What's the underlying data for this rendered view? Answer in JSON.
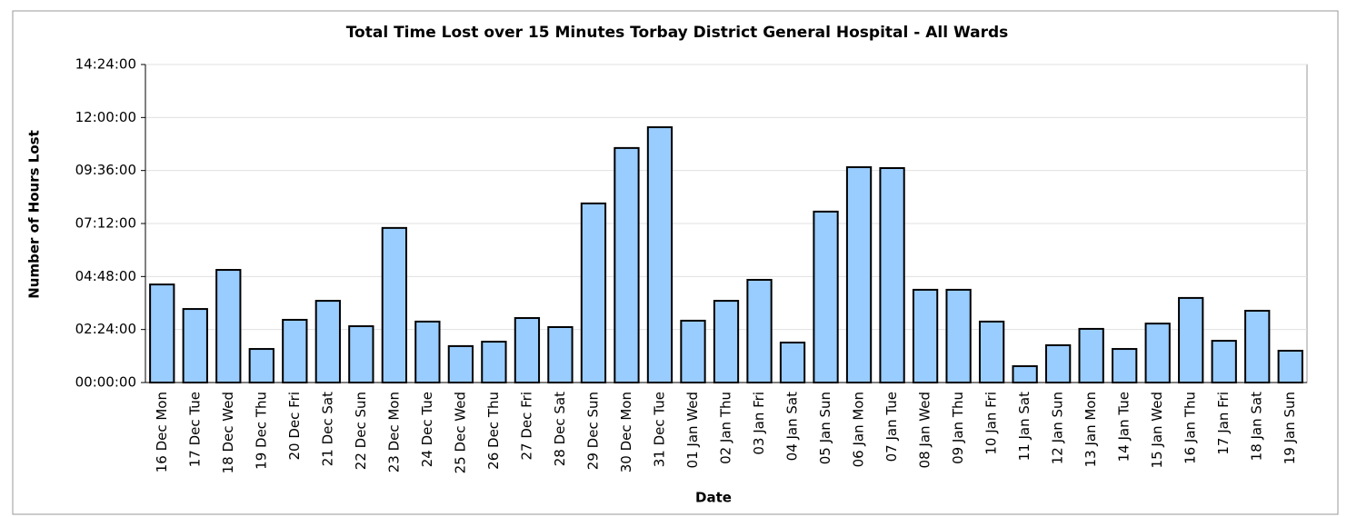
{
  "chart_data": {
    "type": "bar",
    "title": "Total Time Lost over 15 Minutes Torbay District General Hospital - All Wards",
    "x_label": "Date",
    "y_label": "Number of Hours Lost",
    "categories": [
      "16 Dec Mon",
      "17 Dec Tue",
      "18 Dec Wed",
      "19 Dec Thu",
      "20 Dec Fri",
      "21 Dec Sat",
      "22 Dec Sun",
      "23 Dec Mon",
      "24 Dec Tue",
      "25 Dec Wed",
      "26 Dec Thu",
      "27 Dec Fri",
      "28 Dec Sat",
      "29 Dec Sun",
      "30 Dec Mon",
      "31 Dec Tue",
      "01 Jan Wed",
      "02 Jan Thu",
      "03 Jan Fri",
      "04 Jan Sat",
      "05 Jan Sun",
      "06 Jan Mon",
      "07 Jan Tue",
      "08 Jan Wed",
      "09 Jan Thu",
      "10 Jan Fri",
      "11 Jan Sat",
      "12 Jan Sun",
      "13 Jan Mon",
      "14 Jan Tue",
      "15 Jan Wed",
      "16 Jan Thu",
      "17 Jan Fri",
      "18 Jan Sat",
      "19 Jan Sun"
    ],
    "values": [
      4.44,
      3.33,
      5.1,
      1.52,
      2.84,
      3.7,
      2.55,
      7.0,
      2.76,
      1.65,
      1.85,
      2.92,
      2.51,
      8.11,
      10.62,
      11.56,
      2.8,
      3.7,
      4.65,
      1.81,
      7.74,
      9.75,
      9.71,
      4.2,
      4.2,
      2.76,
      0.74,
      1.69,
      2.43,
      1.52,
      2.67,
      3.83,
      1.89,
      3.25,
      1.44
    ],
    "color": "#99ccff",
    "ylim": [
      0,
      14.4
    ],
    "yticks": [
      {
        "value": 0,
        "label": "00:00:00"
      },
      {
        "value": 2.4,
        "label": "02:24:00"
      },
      {
        "value": 4.8,
        "label": "04:48:00"
      },
      {
        "value": 7.2,
        "label": "07:12:00"
      },
      {
        "value": 9.6,
        "label": "09:36:00"
      },
      {
        "value": 12,
        "label": "12:00:00"
      },
      {
        "value": 14.4,
        "label": "14:24:00"
      }
    ],
    "grid": true
  }
}
